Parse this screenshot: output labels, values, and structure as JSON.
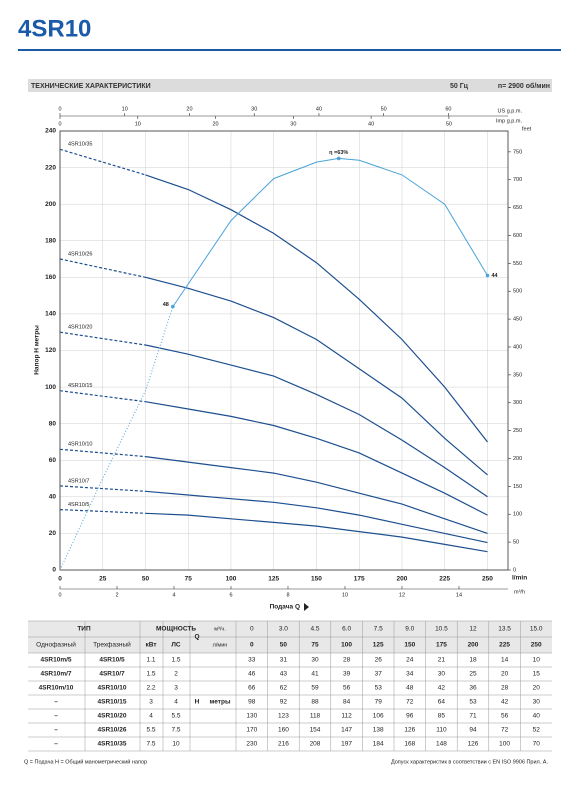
{
  "header": {
    "title": "4SR10"
  },
  "section": {
    "title": "ТЕХНИЧЕСКИЕ ХАРАКТЕРИСТИКИ",
    "frequency": "50 Гц",
    "speed": "n= 2900 об/мин"
  },
  "chart_data": {
    "type": "line",
    "y_label": "Напор H метры",
    "x_label": "Подача Q",
    "x_unit": "l/min",
    "x": [
      0,
      50,
      75,
      100,
      125,
      150,
      175,
      200,
      225,
      250
    ],
    "xlim": [
      0,
      262
    ],
    "xticks": [
      0,
      25,
      50,
      75,
      100,
      125,
      150,
      175,
      200,
      225,
      250
    ],
    "ylim": [
      0,
      240
    ],
    "yticks": [
      0,
      20,
      40,
      60,
      80,
      100,
      120,
      140,
      160,
      180,
      200,
      220,
      240
    ],
    "grid": true,
    "series": [
      {
        "name": "4SR10/5",
        "color": "#1d4f8f",
        "values": [
          33,
          31,
          30,
          28,
          26,
          24,
          21,
          18,
          14,
          10
        ]
      },
      {
        "name": "4SR10/7",
        "color": "#1d4f8f",
        "values": [
          46,
          43,
          41,
          39,
          37,
          34,
          30,
          25,
          20,
          15
        ]
      },
      {
        "name": "4SR10/10",
        "color": "#1d4f8f",
        "values": [
          66,
          62,
          59,
          56,
          53,
          48,
          42,
          36,
          28,
          20
        ]
      },
      {
        "name": "4SR10/15",
        "color": "#1d4f8f",
        "values": [
          98,
          92,
          88,
          84,
          79,
          72,
          64,
          53,
          42,
          30
        ]
      },
      {
        "name": "4SR10/20",
        "color": "#1d4f8f",
        "values": [
          130,
          123,
          118,
          112,
          106,
          96,
          85,
          71,
          56,
          40
        ]
      },
      {
        "name": "4SR10/26",
        "color": "#1d4f8f",
        "values": [
          170,
          160,
          154,
          147,
          138,
          126,
          110,
          94,
          72,
          52
        ]
      },
      {
        "name": "4SR10/35",
        "color": "#1d4f8f",
        "values": [
          230,
          216,
          208,
          197,
          184,
          168,
          148,
          126,
          100,
          70
        ]
      }
    ],
    "efficiency": {
      "color": "#4aa3d8",
      "x": [
        0,
        25,
        50,
        66,
        100,
        125,
        150,
        163,
        175,
        200,
        225,
        250
      ],
      "values": [
        0,
        50,
        98,
        144,
        191,
        214,
        223,
        225,
        224,
        216,
        200,
        161
      ],
      "labels": [
        null,
        null,
        null,
        "48",
        null,
        null,
        null,
        "η =63%",
        null,
        null,
        null,
        "44"
      ]
    },
    "us_gpm_axis": {
      "label": "US g.p.m.",
      "xlim": [
        0,
        69.2
      ],
      "xticks": [
        0,
        10,
        20,
        30,
        40,
        50,
        60
      ]
    },
    "imp_gpm_axis": {
      "label": "Imp g.p.m.",
      "xlim": [
        0,
        57.6
      ],
      "xticks": [
        0,
        10,
        20,
        30,
        40,
        50
      ]
    },
    "m3h_axis": {
      "label": "m³/h",
      "xlim": [
        0,
        15.72
      ],
      "xticks": [
        0,
        2,
        4,
        6,
        8,
        10,
        12,
        14
      ]
    },
    "feet_axis": {
      "label": "feet",
      "ylim": [
        0,
        787.4
      ],
      "yticks": [
        0,
        50,
        100,
        150,
        200,
        250,
        300,
        350,
        400,
        450,
        500,
        550,
        600,
        650,
        700,
        750
      ]
    }
  },
  "table": {
    "type_header": "ТИП",
    "single_header": "Однофазный",
    "three_header": "Трехфазный",
    "power_header": "МОЩНОСТЬ",
    "kw_header": "кВт",
    "hp_header": "ЛС",
    "q_header": "Q",
    "m3h_unit": "м³/ч.",
    "lmin_unit": "л/мин",
    "m3h": [
      "0",
      "3.0",
      "4.5",
      "6.0",
      "7.5",
      "9.0",
      "10.5",
      "12",
      "13.5",
      "15.0"
    ],
    "h_header": "H",
    "h_unit": "метры",
    "rows": [
      {
        "single": "4SR10m/5",
        "kw": 1.1,
        "hp": 1.5
      },
      {
        "single": "4SR10m/7",
        "kw": 1.5,
        "hp": 2
      },
      {
        "single": "4SR10m/10",
        "kw": 2.2,
        "hp": 3
      },
      {
        "single": "–",
        "kw": 3,
        "hp": 4
      },
      {
        "single": "–",
        "kw": 4,
        "hp": 5.5
      },
      {
        "single": "–",
        "kw": 5.5,
        "hp": 7.5
      },
      {
        "single": "–",
        "kw": 7.5,
        "hp": 10
      }
    ]
  },
  "notes": {
    "left": "Q = Подача   H = Общий манометрический напор",
    "right": "Допуск характеристик в соответствии с EN ISO 9906 Прил. А."
  }
}
